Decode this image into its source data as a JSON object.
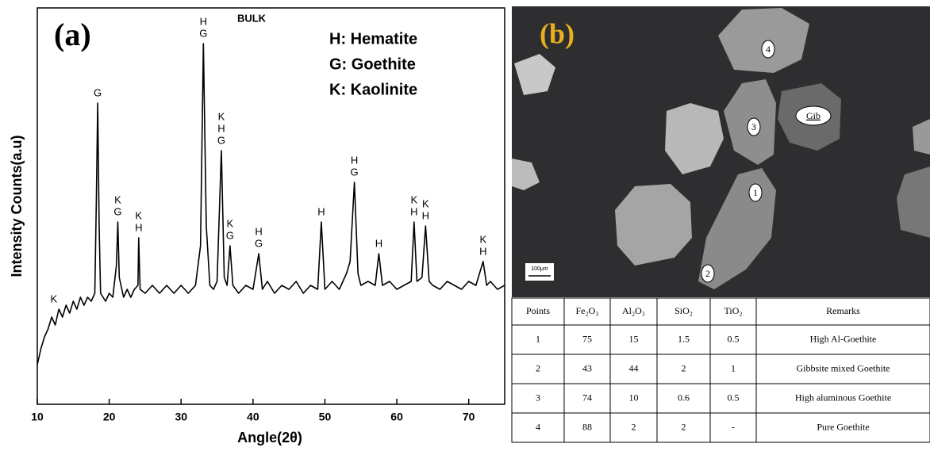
{
  "chart_data": {
    "type": "line",
    "panel_label": "(a)",
    "subtitle": "BULK",
    "x_label": "Angle(2θ)",
    "y_label": "Intensity Counts(a.u)",
    "legend": [
      "H: Hematite",
      "G: Goethite",
      "K: Kaolinite"
    ],
    "xlim": [
      10,
      75
    ],
    "xticks": [
      10,
      20,
      30,
      40,
      50,
      60,
      70
    ],
    "ylim": [
      0,
      100
    ],
    "color": "#000000",
    "x": [
      10,
      10.5,
      11,
      11.5,
      12,
      12.5,
      13,
      13.5,
      14,
      14.5,
      15,
      15.5,
      16,
      16.5,
      17,
      17.5,
      18,
      18.2,
      18.4,
      18.6,
      18.8,
      19.5,
      20,
      20.5,
      21,
      21.2,
      21.4,
      22,
      22.5,
      23,
      23.5,
      24,
      24.1,
      24.3,
      25,
      26,
      27,
      28,
      29,
      30,
      31,
      32,
      32.7,
      33.1,
      33.5,
      34,
      34.5,
      35,
      35.6,
      36,
      36.4,
      36.8,
      37.2,
      38,
      39,
      40,
      40.8,
      41.3,
      42,
      43,
      44,
      45,
      46,
      47,
      48,
      49,
      49.5,
      50,
      51,
      52,
      53,
      53.5,
      54.1,
      54.6,
      55,
      56,
      57,
      57.5,
      58,
      59,
      60,
      61,
      62,
      62.4,
      62.8,
      63.5,
      64,
      64.5,
      65,
      66,
      67,
      68,
      69,
      70,
      71,
      72,
      72.5,
      73,
      74,
      75
    ],
    "values": [
      10,
      14,
      17,
      19,
      22,
      20,
      24,
      22,
      25,
      23,
      26,
      24,
      27,
      25,
      27,
      26,
      28,
      50,
      76,
      45,
      28,
      26,
      28,
      27,
      35,
      46,
      32,
      27,
      29,
      27,
      29,
      30,
      42,
      29,
      28,
      30,
      28,
      30,
      28,
      30,
      28,
      30,
      40,
      91,
      45,
      30,
      29,
      31,
      64,
      32,
      30,
      40,
      30,
      28,
      30,
      29,
      38,
      29,
      31,
      28,
      30,
      29,
      31,
      28,
      30,
      29,
      46,
      29,
      31,
      29,
      33,
      36,
      56,
      33,
      30,
      31,
      30,
      38,
      30,
      31,
      29,
      30,
      31,
      46,
      31,
      32,
      45,
      31,
      30,
      29,
      31,
      30,
      29,
      31,
      30,
      36,
      30,
      31,
      29,
      30
    ],
    "annotations": [
      {
        "x": 12.3,
        "y": 24,
        "lines": [
          "K"
        ]
      },
      {
        "x": 18.4,
        "y": 76,
        "lines": [
          "G"
        ]
      },
      {
        "x": 21.2,
        "y": 46,
        "lines": [
          "K",
          "G"
        ]
      },
      {
        "x": 24.1,
        "y": 42,
        "lines": [
          "K",
          "H"
        ]
      },
      {
        "x": 33.1,
        "y": 91,
        "lines": [
          "H",
          "G"
        ]
      },
      {
        "x": 35.6,
        "y": 64,
        "lines": [
          "K",
          "H",
          "G"
        ]
      },
      {
        "x": 36.8,
        "y": 40,
        "lines": [
          "K",
          "G"
        ]
      },
      {
        "x": 40.8,
        "y": 38,
        "lines": [
          "H",
          "G"
        ]
      },
      {
        "x": 49.5,
        "y": 46,
        "lines": [
          "H"
        ]
      },
      {
        "x": 54.1,
        "y": 56,
        "lines": [
          "H",
          "G"
        ]
      },
      {
        "x": 57.5,
        "y": 38,
        "lines": [
          "H"
        ]
      },
      {
        "x": 62.4,
        "y": 46,
        "lines": [
          "K",
          "H"
        ]
      },
      {
        "x": 64.0,
        "y": 45,
        "lines": [
          "K",
          "H"
        ]
      },
      {
        "x": 72.0,
        "y": 36,
        "lines": [
          "K",
          "H"
        ]
      }
    ]
  },
  "panel_b": {
    "label": "(b)",
    "scale_bar": "100μm",
    "particles": [
      "1",
      "2",
      "3",
      "4",
      "Gib"
    ],
    "table": {
      "header": [
        "Points",
        "Fe₂O₃",
        "Al₂O₃",
        "SiO₂",
        "TiO₂",
        "Remarks"
      ],
      "rows": [
        [
          1,
          75,
          15,
          1.5,
          0.5,
          "High Al-Goethite"
        ],
        [
          2,
          43,
          44,
          2,
          1,
          "Gibbsite mixed Goethite"
        ],
        [
          3,
          74,
          10,
          0.6,
          0.5,
          "High aluminous Goethite"
        ],
        [
          4,
          88,
          2,
          2,
          "-",
          "Pure Goethite"
        ]
      ]
    }
  }
}
